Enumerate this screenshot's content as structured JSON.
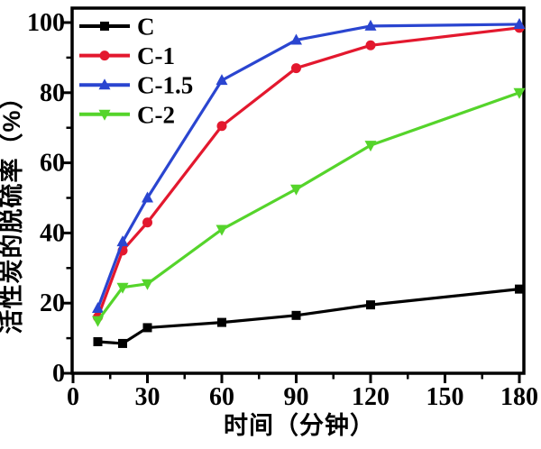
{
  "chart_data": {
    "type": "line",
    "title": "",
    "xlabel": "时间（分钟）",
    "ylabel": "活性炭的脱硫率（%）",
    "x": [
      10,
      20,
      30,
      60,
      90,
      120,
      180
    ],
    "series": [
      {
        "name": "C",
        "color": "#000000",
        "marker": "square",
        "values": [
          9,
          8.5,
          13,
          14.5,
          16.5,
          19.5,
          24
        ]
      },
      {
        "name": "C-1",
        "color": "#e3182e",
        "marker": "circle",
        "values": [
          16,
          35,
          43,
          70.5,
          87,
          93.5,
          98.5
        ]
      },
      {
        "name": "C-1.5",
        "color": "#2a45d0",
        "marker": "triangle-up",
        "values": [
          18.5,
          37.5,
          50,
          83.5,
          95,
          99,
          99.5
        ]
      },
      {
        "name": "C-2",
        "color": "#55d42b",
        "marker": "triangle-down",
        "values": [
          15,
          24.5,
          25.5,
          41,
          52.5,
          65,
          80
        ]
      }
    ],
    "x_ticks": [
      0,
      30,
      60,
      90,
      120,
      150,
      180
    ],
    "y_ticks": [
      0,
      20,
      40,
      60,
      80,
      100
    ],
    "x_minor_step": 15,
    "y_minor_step": 10,
    "xlim": [
      0,
      182
    ],
    "ylim": [
      0,
      104
    ],
    "grid": false,
    "legend_position": "top-left",
    "frame_color": "#000000"
  }
}
